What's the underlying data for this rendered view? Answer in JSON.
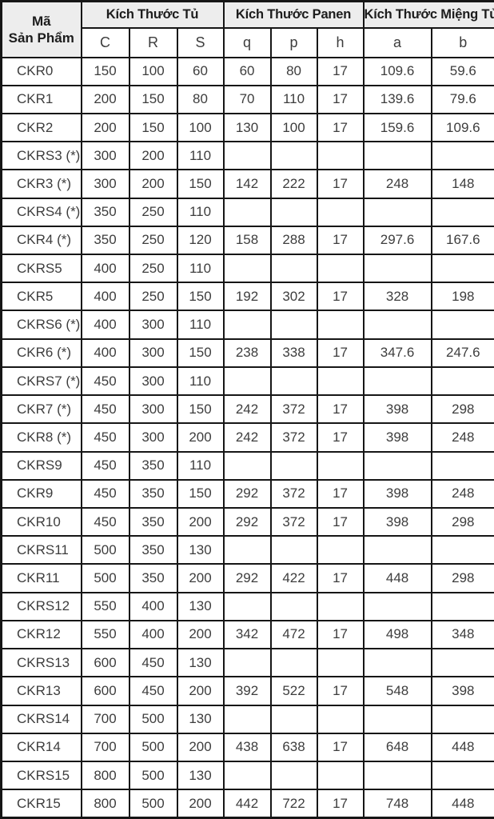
{
  "table": {
    "header": {
      "code_label_line1": "Mã",
      "code_label_line2": "Sản Phẩm",
      "groups": [
        {
          "label": "Kích Thước Tủ",
          "span": 3
        },
        {
          "label": "Kích Thước Panen",
          "span": 3
        },
        {
          "label": "Kích Thước Miệng Tủ",
          "span": 2
        }
      ],
      "columns": [
        "C",
        "R",
        "S",
        "q",
        "p",
        "h",
        "a",
        "b"
      ]
    },
    "rows": [
      {
        "code": "CKR0",
        "values": [
          "150",
          "100",
          "60",
          "60",
          "80",
          "17",
          "109.6",
          "59.6"
        ]
      },
      {
        "code": "CKR1",
        "values": [
          "200",
          "150",
          "80",
          "70",
          "110",
          "17",
          "139.6",
          "79.6"
        ]
      },
      {
        "code": "CKR2",
        "values": [
          "200",
          "150",
          "100",
          "130",
          "100",
          "17",
          "159.6",
          "109.6"
        ]
      },
      {
        "code": "CKRS3 (*)",
        "values": [
          "300",
          "200",
          "110",
          "",
          "",
          "",
          "",
          ""
        ]
      },
      {
        "code": "CKR3 (*)",
        "values": [
          "300",
          "200",
          "150",
          "142",
          "222",
          "17",
          "248",
          "148"
        ]
      },
      {
        "code": "CKRS4 (*)",
        "values": [
          "350",
          "250",
          "110",
          "",
          "",
          "",
          "",
          ""
        ]
      },
      {
        "code": "CKR4 (*)",
        "values": [
          "350",
          "250",
          "120",
          "158",
          "288",
          "17",
          "297.6",
          "167.6"
        ]
      },
      {
        "code": "CKRS5",
        "values": [
          "400",
          "250",
          "110",
          "",
          "",
          "",
          "",
          ""
        ]
      },
      {
        "code": "CKR5",
        "values": [
          "400",
          "250",
          "150",
          "192",
          "302",
          "17",
          "328",
          "198"
        ]
      },
      {
        "code": "CKRS6 (*)",
        "values": [
          "400",
          "300",
          "110",
          "",
          "",
          "",
          "",
          ""
        ]
      },
      {
        "code": "CKR6 (*)",
        "values": [
          "400",
          "300",
          "150",
          "238",
          "338",
          "17",
          "347.6",
          "247.6"
        ]
      },
      {
        "code": "CKRS7 (*)",
        "values": [
          "450",
          "300",
          "110",
          "",
          "",
          "",
          "",
          ""
        ]
      },
      {
        "code": "CKR7 (*)",
        "values": [
          "450",
          "300",
          "150",
          "242",
          "372",
          "17",
          "398",
          "298"
        ]
      },
      {
        "code": "CKR8 (*)",
        "values": [
          "450",
          "300",
          "200",
          "242",
          "372",
          "17",
          "398",
          "248"
        ]
      },
      {
        "code": "CKRS9",
        "values": [
          "450",
          "350",
          "110",
          "",
          "",
          "",
          "",
          ""
        ]
      },
      {
        "code": "CKR9",
        "values": [
          "450",
          "350",
          "150",
          "292",
          "372",
          "17",
          "398",
          "248"
        ]
      },
      {
        "code": "CKR10",
        "values": [
          "450",
          "350",
          "200",
          "292",
          "372",
          "17",
          "398",
          "298"
        ]
      },
      {
        "code": "CKRS11",
        "values": [
          "500",
          "350",
          "130",
          "",
          "",
          "",
          "",
          ""
        ]
      },
      {
        "code": "CKR11",
        "values": [
          "500",
          "350",
          "200",
          "292",
          "422",
          "17",
          "448",
          "298"
        ]
      },
      {
        "code": "CKRS12",
        "values": [
          "550",
          "400",
          "130",
          "",
          "",
          "",
          "",
          ""
        ]
      },
      {
        "code": "CKR12",
        "values": [
          "550",
          "400",
          "200",
          "342",
          "472",
          "17",
          "498",
          "348"
        ]
      },
      {
        "code": "CKRS13",
        "values": [
          "600",
          "450",
          "130",
          "",
          "",
          "",
          "",
          ""
        ]
      },
      {
        "code": "CKR13",
        "values": [
          "600",
          "450",
          "200",
          "392",
          "522",
          "17",
          "548",
          "398"
        ]
      },
      {
        "code": "CKRS14",
        "values": [
          "700",
          "500",
          "130",
          "",
          "",
          "",
          "",
          ""
        ]
      },
      {
        "code": "CKR14",
        "values": [
          "700",
          "500",
          "200",
          "438",
          "638",
          "17",
          "648",
          "448"
        ]
      },
      {
        "code": "CKRS15",
        "values": [
          "800",
          "500",
          "130",
          "",
          "",
          "",
          "",
          ""
        ]
      },
      {
        "code": "CKR15",
        "values": [
          "800",
          "500",
          "200",
          "442",
          "722",
          "17",
          "748",
          "448"
        ]
      }
    ]
  },
  "colors": {
    "border": "#161616",
    "header_background": "#ededed",
    "header_text": "#1c1c1c",
    "body_text": "#3d3d3d",
    "row_background": "#ffffff"
  }
}
